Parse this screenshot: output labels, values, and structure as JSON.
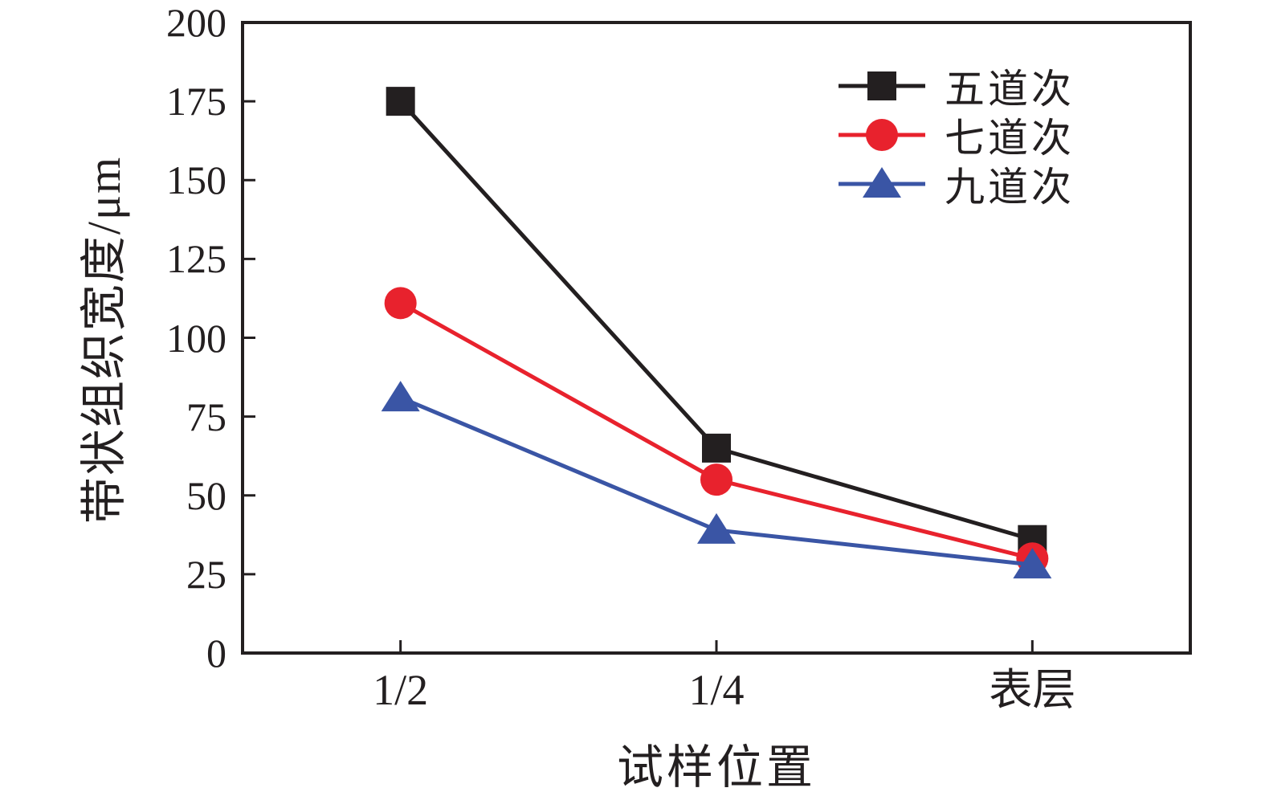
{
  "figure": {
    "background": "#ffffff",
    "frame_color": "#231f20"
  },
  "chart_data": {
    "type": "line",
    "title": "",
    "xlabel": "试样位置",
    "ylabel": "带状组织宽度/μm",
    "categories": [
      "1/2",
      "1/4",
      "表层"
    ],
    "yticks": [
      0,
      25,
      50,
      75,
      100,
      125,
      150,
      175,
      200
    ],
    "ylim": [
      0,
      200
    ],
    "grid": false,
    "legend_position": "top-right-inside",
    "series": [
      {
        "name": "五道次",
        "marker": "square",
        "color": "#231f20",
        "values": [
          175,
          65,
          36
        ]
      },
      {
        "name": "七道次",
        "marker": "circle",
        "color": "#e8222d",
        "values": [
          111,
          55,
          30
        ]
      },
      {
        "name": "九道次",
        "marker": "triangle",
        "color": "#3a55a5",
        "values": [
          81,
          39,
          28
        ]
      }
    ]
  }
}
